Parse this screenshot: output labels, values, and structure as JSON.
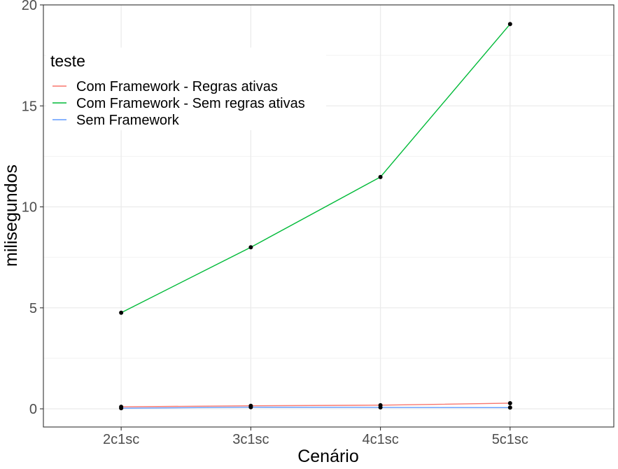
{
  "chart_data": {
    "type": "line",
    "title": "",
    "xlabel": "Cenário",
    "ylabel": "milisegundos",
    "categories": [
      "2c1sc",
      "3c1sc",
      "4c1sc",
      "5c1sc"
    ],
    "ylim": [
      -0.9,
      20
    ],
    "y_ticks": [
      0,
      5,
      10,
      15,
      20
    ],
    "grid": true,
    "legend": {
      "title": "teste",
      "position": "top-left"
    },
    "series": [
      {
        "name": "Com Framework - Regras ativas",
        "color": "#F8766D",
        "values": [
          0.1,
          0.15,
          0.18,
          0.28
        ]
      },
      {
        "name": "Com Framework - Sem regras ativas",
        "color": "#00BA38",
        "values": [
          4.76,
          8.0,
          11.48,
          19.05
        ]
      },
      {
        "name": "Sem Framework",
        "color": "#619CFF",
        "values": [
          0.03,
          0.08,
          0.07,
          0.06
        ]
      }
    ],
    "point_color": "#000000"
  }
}
